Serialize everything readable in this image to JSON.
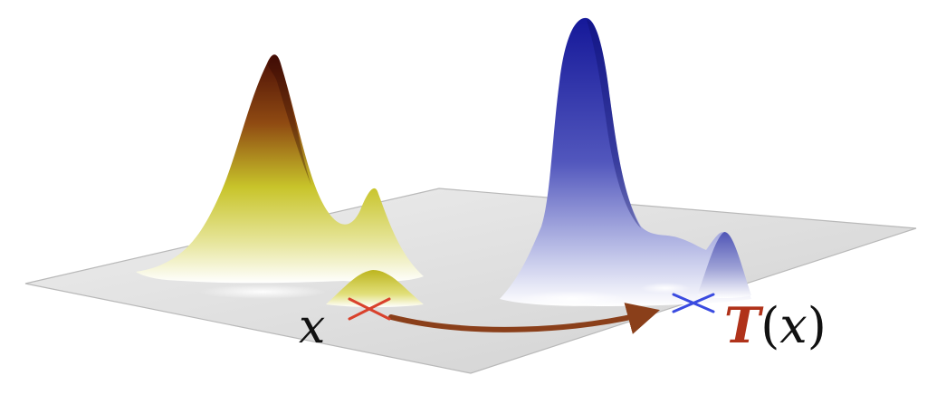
{
  "labels": {
    "source_point": "x",
    "map_bold": "T",
    "map_paren_open": "(",
    "map_arg": "x",
    "map_paren_close": ")"
  },
  "colors": {
    "plane": "#e0e0e0",
    "plane_edge": "#b9b9b9",
    "source_peak_low": "#c8c42a",
    "source_peak_high": "#5a1208",
    "target_peak_low": "#ffffff",
    "target_peak_high": "#1a1c9a",
    "source_marker": "#d9412c",
    "target_marker": "#3a4be0",
    "arrow": "#8a3f1a",
    "map_label": "#b0321a",
    "text": "#111111"
  }
}
